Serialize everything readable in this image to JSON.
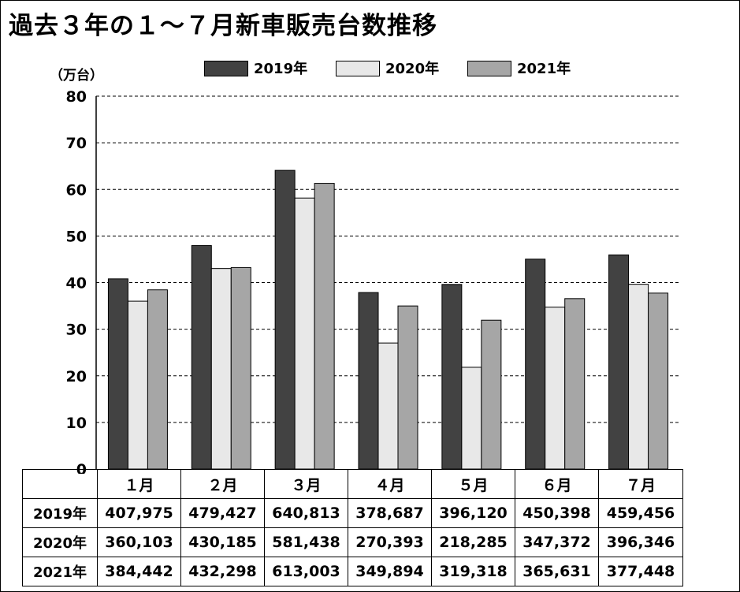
{
  "title": "過去３年の１～７月新車販売台数推移",
  "unit_label": "（万台）",
  "colors": {
    "series_2019": "#424242",
    "series_2020": "#e8e8e8",
    "series_2021": "#a6a6a6",
    "grid": "#000000"
  },
  "legend": [
    {
      "label": "2019年",
      "color": "#424242"
    },
    {
      "label": "2020年",
      "color": "#e8e8e8"
    },
    {
      "label": "2021年",
      "color": "#a6a6a6"
    }
  ],
  "chart_data": {
    "type": "bar",
    "title": "過去３年の１～７月新車販売台数推移",
    "ylabel": "（万台）",
    "xlabel": "",
    "categories": [
      "１月",
      "２月",
      "３月",
      "４月",
      "５月",
      "６月",
      "７月"
    ],
    "ylim": [
      0,
      80
    ],
    "yticks": [
      0,
      10,
      20,
      30,
      40,
      50,
      60,
      70,
      80
    ],
    "grid": "horizontal dashed",
    "legend_position": "top-center",
    "series": [
      {
        "name": "2019年",
        "values": [
          40.7975,
          47.9427,
          64.0813,
          37.8687,
          39.612,
          45.0398,
          45.9456
        ]
      },
      {
        "name": "2020年",
        "values": [
          36.0103,
          43.0185,
          58.1438,
          27.0393,
          21.8285,
          34.7372,
          39.6346
        ]
      },
      {
        "name": "2021年",
        "values": [
          38.4442,
          43.2298,
          61.3003,
          34.9894,
          31.9318,
          36.5631,
          37.7448
        ]
      }
    ]
  },
  "table": {
    "header": [
      "",
      "１月",
      "２月",
      "３月",
      "４月",
      "５月",
      "６月",
      "７月"
    ],
    "rows": [
      {
        "label": "2019年",
        "cells": [
          "407,975",
          "479,427",
          "640,813",
          "378,687",
          "396,120",
          "450,398",
          "459,456"
        ]
      },
      {
        "label": "2020年",
        "cells": [
          "360,103",
          "430,185",
          "581,438",
          "270,393",
          "218,285",
          "347,372",
          "396,346"
        ]
      },
      {
        "label": "2021年",
        "cells": [
          "384,442",
          "432,298",
          "613,003",
          "349,894",
          "319,318",
          "365,631",
          "377,448"
        ]
      }
    ]
  }
}
